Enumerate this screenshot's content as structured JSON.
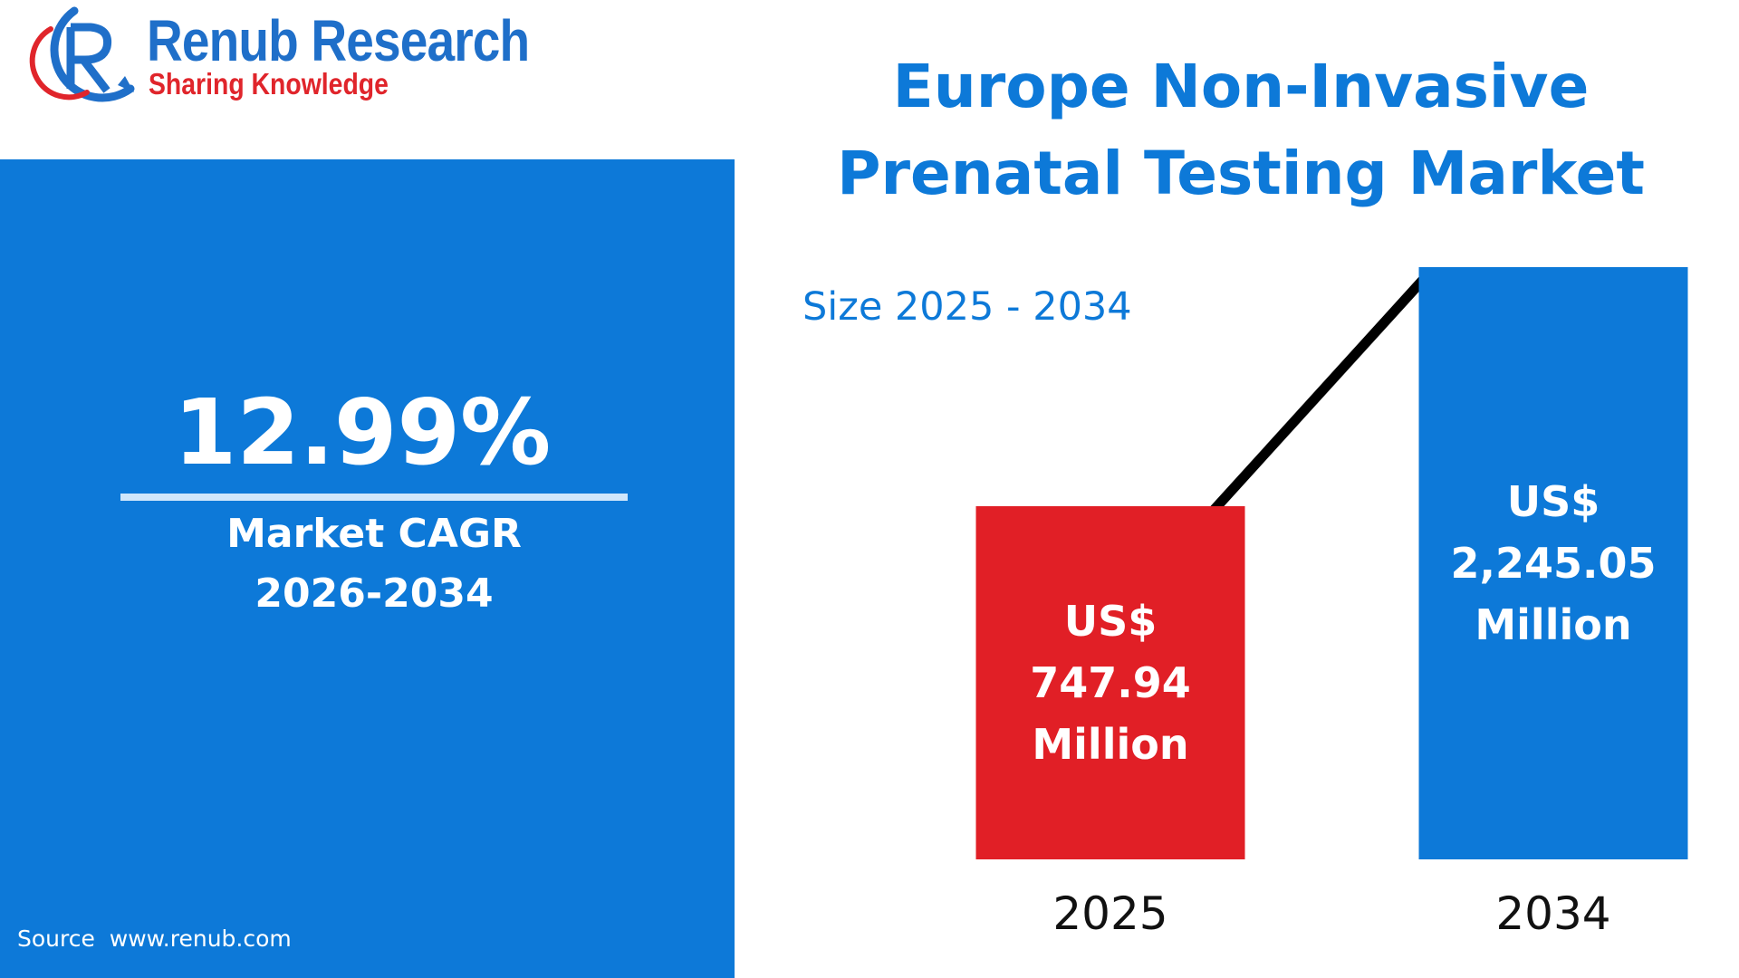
{
  "brand": {
    "name": "Renub Research",
    "tagline": "Sharing Knowledge"
  },
  "headline": {
    "title": "Europe Non-Invasive Prenatal Testing Market",
    "subtitle": "Size 2025 - 2034"
  },
  "cagr": {
    "value": "12.99%",
    "label": "Market CAGR",
    "period": "2026-2034"
  },
  "source": "Source  www.renub.com",
  "colors": {
    "accent_blue": "#0d79d8",
    "bar_2025": "#e11f26",
    "bar_2034": "#0d79d8",
    "trend_line": "#000000",
    "logo_red": "#e0252b"
  },
  "chart_data": {
    "type": "bar",
    "title": "Europe Non-Invasive Prenatal Testing Market",
    "subtitle": "Size 2025 - 2034",
    "categories": [
      "2025",
      "2034"
    ],
    "values": [
      747.94,
      2245.05
    ],
    "unit": "US$ Million",
    "data_labels": [
      [
        "US$",
        "747.94",
        "Million"
      ],
      [
        "US$",
        "2,245.05",
        "Million"
      ]
    ],
    "bar_colors": [
      "#e11f26",
      "#0d79d8"
    ],
    "trend_line": true,
    "grid": false,
    "legend": "none"
  }
}
